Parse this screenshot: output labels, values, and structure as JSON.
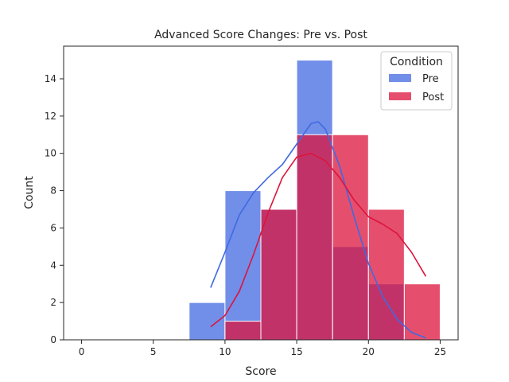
{
  "chart_data": {
    "type": "histogram",
    "title": "Advanced Score Changes: Pre vs. Post",
    "xlabel": "Score",
    "ylabel": "Count",
    "xlim": [
      -1.25,
      26.25
    ],
    "ylim": [
      0,
      15.75
    ],
    "xticks": [
      0,
      5,
      10,
      15,
      20,
      25
    ],
    "yticks": [
      0,
      2,
      4,
      6,
      8,
      10,
      12,
      14
    ],
    "bin_edges": [
      7.5,
      10,
      12.5,
      15,
      17.5,
      20,
      22.5,
      25
    ],
    "legend": {
      "title": "Condition",
      "placement": "top-right"
    },
    "series": [
      {
        "name": "Pre",
        "color": "#4169e1",
        "counts": [
          2,
          8,
          7,
          15,
          5,
          3,
          0
        ],
        "kde": [
          [
            9.0,
            2.8
          ],
          [
            10.0,
            4.7
          ],
          [
            11.0,
            6.7
          ],
          [
            12.0,
            7.9
          ],
          [
            13.0,
            8.7
          ],
          [
            14.0,
            9.4
          ],
          [
            15.0,
            10.5
          ],
          [
            16.0,
            11.6
          ],
          [
            16.5,
            11.7
          ],
          [
            17.0,
            11.3
          ],
          [
            18.0,
            9.3
          ],
          [
            19.0,
            6.6
          ],
          [
            20.0,
            4.1
          ],
          [
            21.0,
            2.3
          ],
          [
            22.0,
            1.1
          ],
          [
            23.0,
            0.4
          ],
          [
            24.0,
            0.1
          ]
        ]
      },
      {
        "name": "Post",
        "color": "#dc143c",
        "counts": [
          0,
          1,
          7,
          11,
          11,
          7,
          3
        ],
        "kde": [
          [
            9.0,
            0.7
          ],
          [
            10.0,
            1.3
          ],
          [
            11.0,
            2.6
          ],
          [
            12.0,
            4.6
          ],
          [
            13.0,
            6.8
          ],
          [
            14.0,
            8.7
          ],
          [
            15.0,
            9.8
          ],
          [
            16.0,
            10.0
          ],
          [
            17.0,
            9.6
          ],
          [
            18.0,
            8.7
          ],
          [
            19.0,
            7.5
          ],
          [
            20.0,
            6.6
          ],
          [
            21.0,
            6.2
          ],
          [
            22.0,
            5.7
          ],
          [
            23.0,
            4.7
          ],
          [
            24.0,
            3.4
          ]
        ]
      }
    ]
  }
}
